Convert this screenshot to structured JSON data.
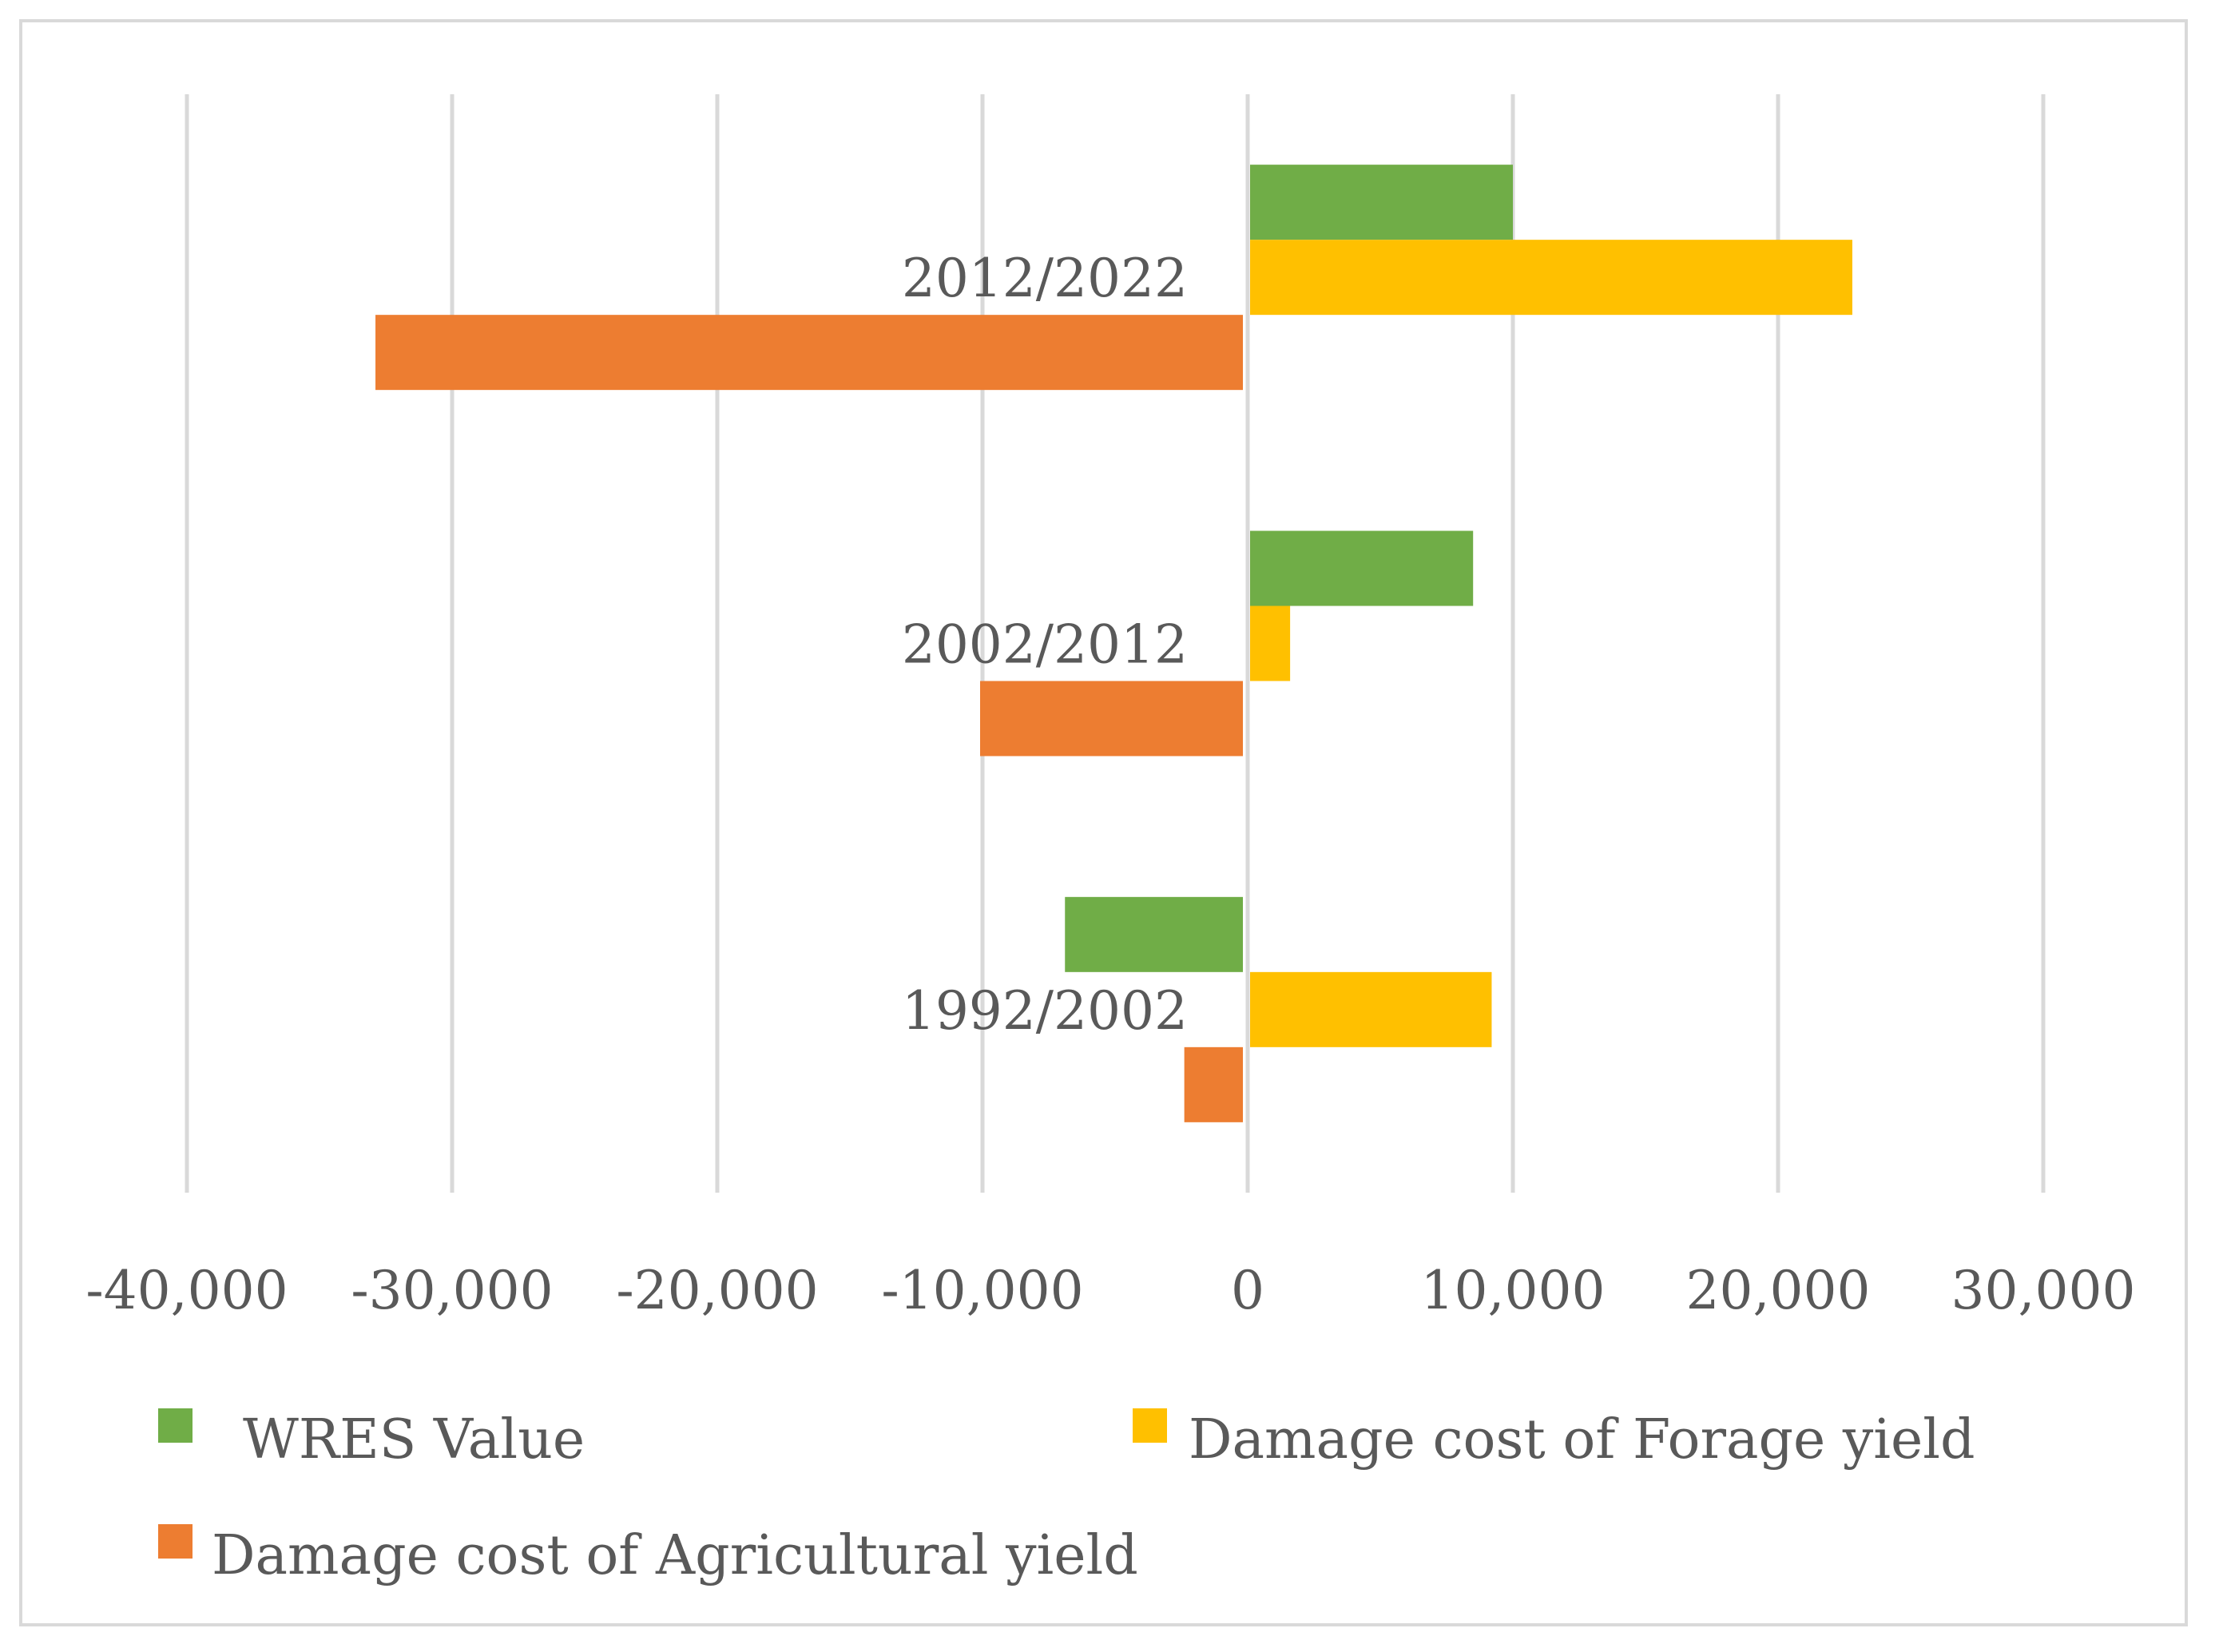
{
  "chart_data": {
    "type": "bar",
    "orientation": "horizontal",
    "title": "",
    "xlabel": "",
    "ylabel": "",
    "xlim": [
      -40000,
      30000
    ],
    "grid": true,
    "categories": [
      "1992/2002",
      "2002/2012",
      "2012/2022"
    ],
    "x_ticks": [
      -40000,
      -30000,
      -20000,
      -10000,
      0,
      10000,
      20000,
      30000
    ],
    "x_tick_labels": [
      "-40,000",
      "-30,000",
      "-20,000",
      "-10,000",
      "0",
      "10,000",
      "20,000",
      "30,000"
    ],
    "series": [
      {
        "name": "WRES Value",
        "color": "#70ad47",
        "values": [
          -6800,
          8500,
          10000
        ]
      },
      {
        "name": "Damage cost of Forage yield",
        "color": "#ffc000",
        "values": [
          9200,
          1600,
          22800
        ]
      },
      {
        "name": "Damage cost of Agricultural yield",
        "color": "#ed7d31",
        "values": [
          -2300,
          -10000,
          -32800
        ]
      }
    ],
    "legend": [
      {
        "label": "WRES Value",
        "color": "#70ad47"
      },
      {
        "label": "Damage cost of Forage yield",
        "color": "#ffc000"
      },
      {
        "label": "Damage cost of Agricultural yield",
        "color": "#ed7d31"
      }
    ],
    "legend_position": "bottom"
  }
}
